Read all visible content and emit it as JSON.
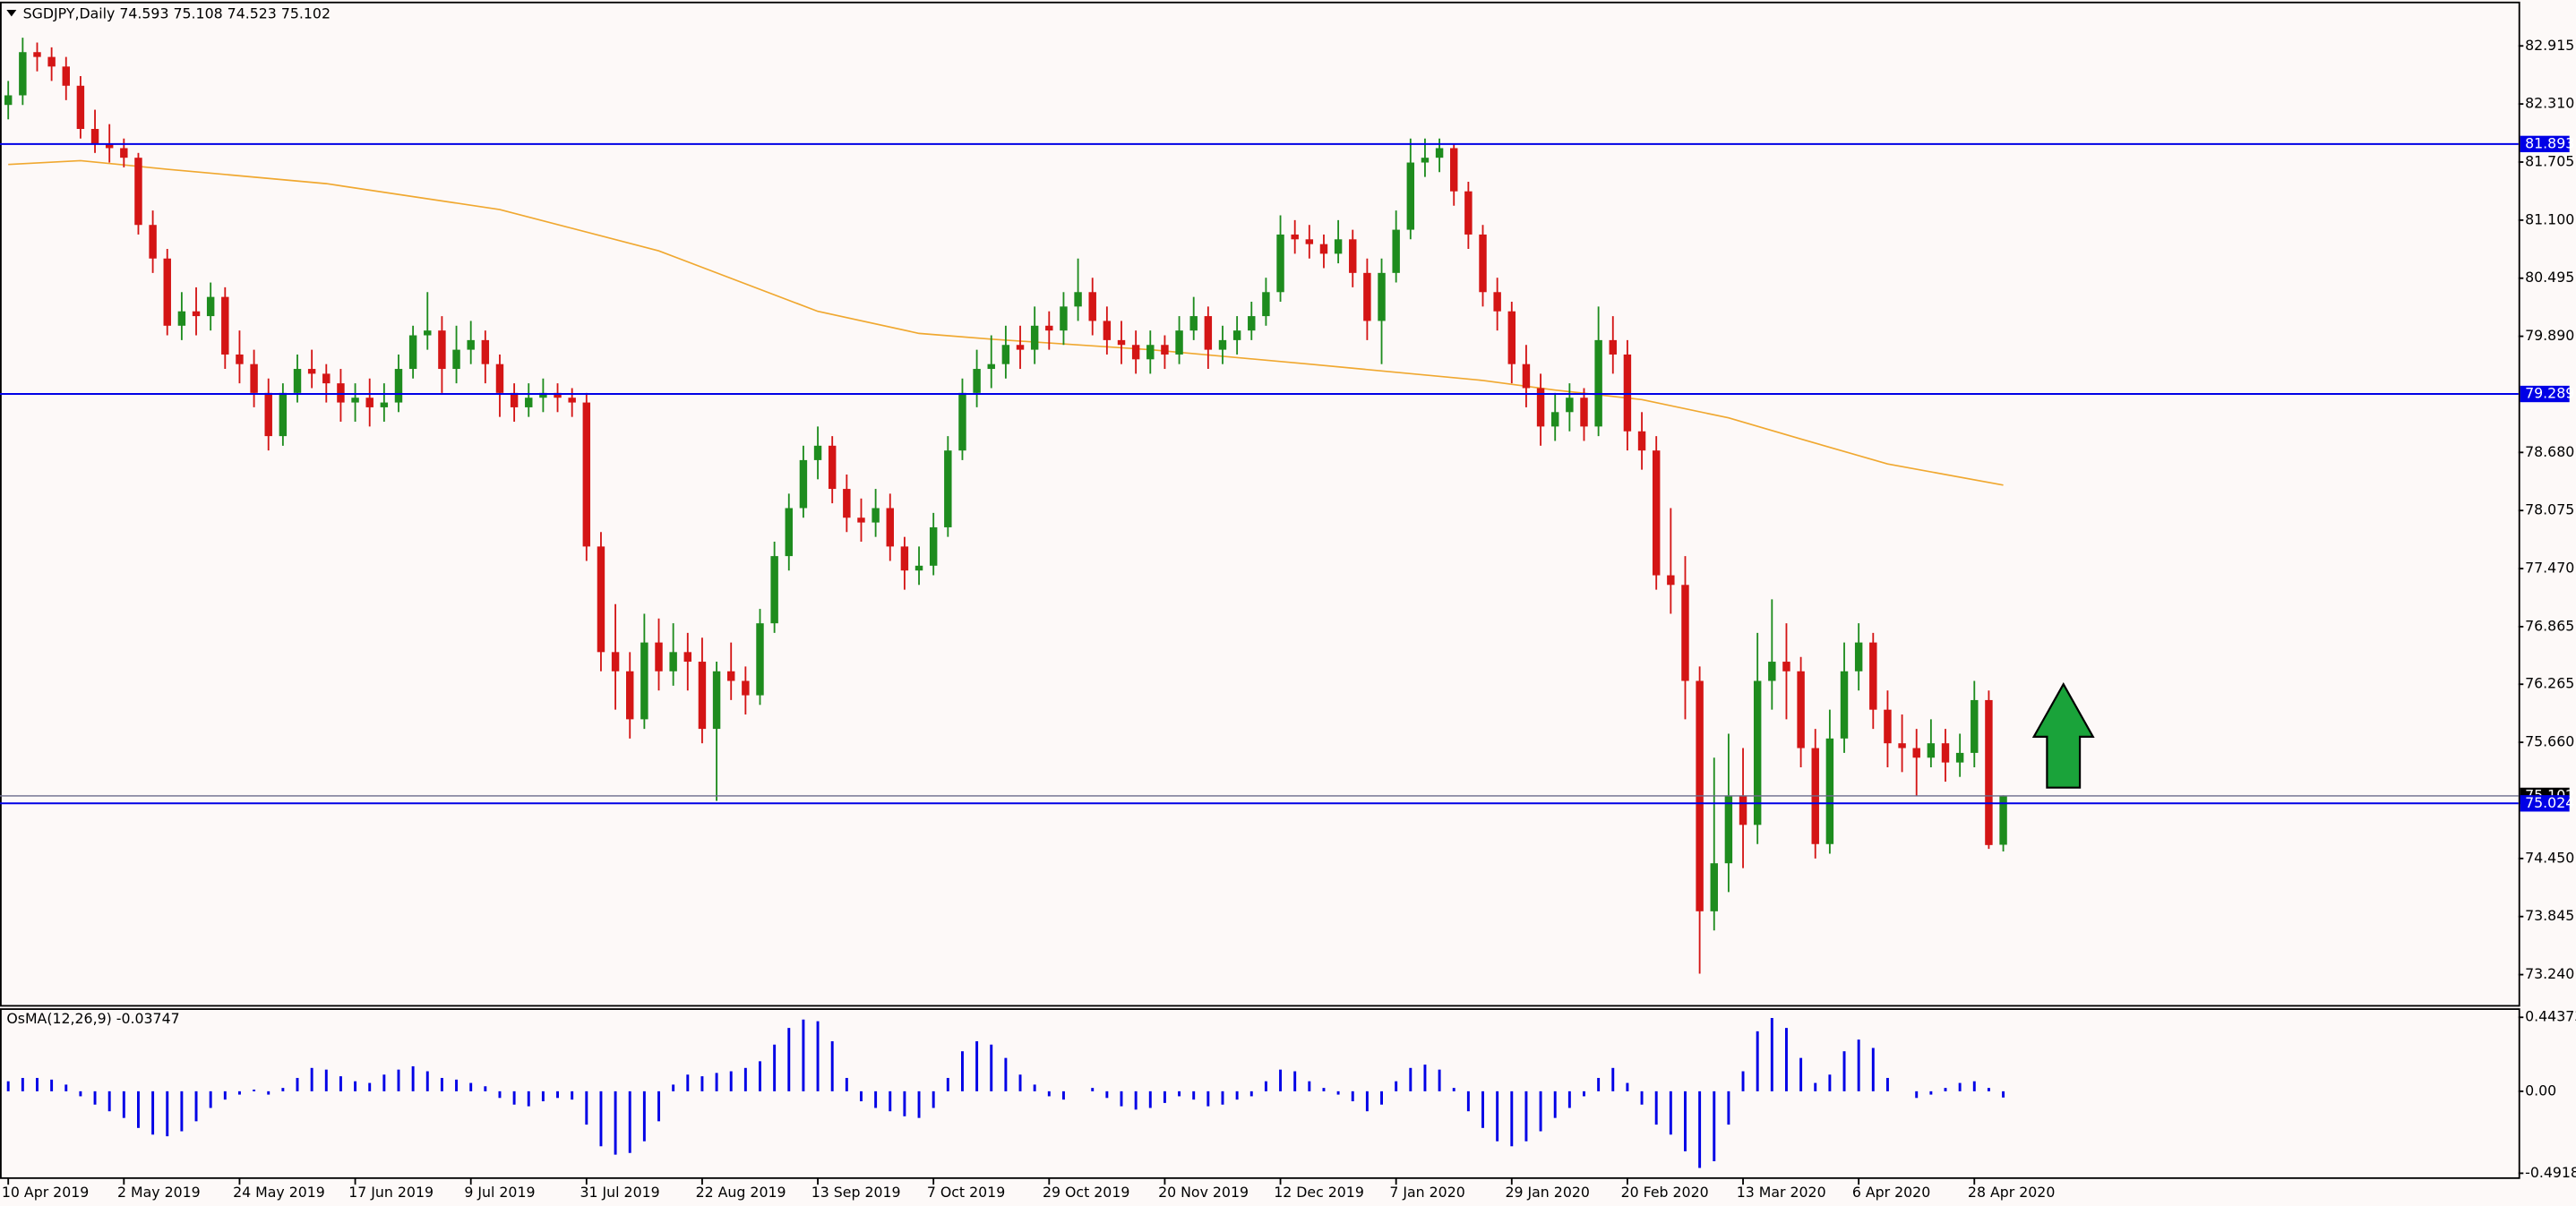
{
  "header": {
    "symbol": "SGDJPY,Daily",
    "ohlc": [
      74.593,
      75.108,
      74.523,
      75.102
    ]
  },
  "chart_data": [
    {
      "type": "candlestick",
      "up_color": "#1e8c1e",
      "down_color": "#d41515",
      "candles": [
        [
          82.3,
          82.55,
          82.15,
          82.4
        ],
        [
          82.4,
          83.0,
          82.3,
          82.85
        ],
        [
          82.85,
          82.95,
          82.65,
          82.8
        ],
        [
          82.8,
          82.9,
          82.55,
          82.7
        ],
        [
          82.7,
          82.8,
          82.35,
          82.5
        ],
        [
          82.5,
          82.6,
          81.95,
          82.05
        ],
        [
          82.05,
          82.25,
          81.8,
          81.9
        ],
        [
          81.9,
          82.1,
          81.7,
          81.85
        ],
        [
          81.85,
          81.95,
          81.65,
          81.75
        ],
        [
          81.75,
          81.8,
          80.95,
          81.05
        ],
        [
          81.05,
          81.2,
          80.55,
          80.7
        ],
        [
          80.7,
          80.8,
          79.9,
          80.0
        ],
        [
          80.0,
          80.35,
          79.85,
          80.15
        ],
        [
          80.15,
          80.4,
          79.9,
          80.1
        ],
        [
          80.1,
          80.45,
          79.95,
          80.3
        ],
        [
          80.3,
          80.4,
          79.55,
          79.7
        ],
        [
          79.7,
          79.95,
          79.4,
          79.6
        ],
        [
          79.6,
          79.75,
          79.15,
          79.3
        ],
        [
          79.3,
          79.45,
          78.7,
          78.85
        ],
        [
          78.85,
          79.4,
          78.75,
          79.3
        ],
        [
          79.3,
          79.7,
          79.2,
          79.55
        ],
        [
          79.55,
          79.75,
          79.35,
          79.5
        ],
        [
          79.5,
          79.6,
          79.2,
          79.4
        ],
        [
          79.4,
          79.55,
          79.0,
          79.2
        ],
        [
          79.2,
          79.4,
          79.0,
          79.25
        ],
        [
          79.25,
          79.45,
          78.95,
          79.15
        ],
        [
          79.15,
          79.4,
          79.0,
          79.2
        ],
        [
          79.2,
          79.7,
          79.1,
          79.55
        ],
        [
          79.55,
          80.0,
          79.45,
          79.9
        ],
        [
          79.9,
          80.35,
          79.75,
          79.95
        ],
        [
          79.95,
          80.1,
          79.3,
          79.55
        ],
        [
          79.55,
          80.0,
          79.4,
          79.75
        ],
        [
          79.75,
          80.05,
          79.6,
          79.85
        ],
        [
          79.85,
          79.95,
          79.4,
          79.6
        ],
        [
          79.6,
          79.7,
          79.05,
          79.3
        ],
        [
          79.3,
          79.4,
          79.0,
          79.15
        ],
        [
          79.15,
          79.4,
          79.05,
          79.25
        ],
        [
          79.25,
          79.45,
          79.1,
          79.3
        ],
        [
          79.3,
          79.4,
          79.1,
          79.25
        ],
        [
          79.25,
          79.35,
          79.05,
          79.2
        ],
        [
          79.2,
          79.3,
          77.55,
          77.7
        ],
        [
          77.7,
          77.85,
          76.4,
          76.6
        ],
        [
          76.6,
          77.1,
          76.0,
          76.4
        ],
        [
          76.4,
          76.6,
          75.7,
          75.9
        ],
        [
          75.9,
          77.0,
          75.8,
          76.7
        ],
        [
          76.7,
          76.95,
          76.2,
          76.4
        ],
        [
          76.4,
          76.9,
          76.25,
          76.6
        ],
        [
          76.6,
          76.8,
          76.2,
          76.5
        ],
        [
          76.5,
          76.75,
          75.65,
          75.8
        ],
        [
          75.8,
          76.5,
          75.05,
          76.4
        ],
        [
          76.4,
          76.7,
          76.1,
          76.3
        ],
        [
          76.3,
          76.45,
          75.95,
          76.15
        ],
        [
          76.15,
          77.05,
          76.05,
          76.9
        ],
        [
          76.9,
          77.75,
          76.8,
          77.6
        ],
        [
          77.6,
          78.25,
          77.45,
          78.1
        ],
        [
          78.1,
          78.75,
          78.0,
          78.6
        ],
        [
          78.6,
          78.95,
          78.4,
          78.75
        ],
        [
          78.75,
          78.85,
          78.15,
          78.3
        ],
        [
          78.3,
          78.45,
          77.85,
          78.0
        ],
        [
          78.0,
          78.2,
          77.75,
          77.95
        ],
        [
          77.95,
          78.3,
          77.8,
          78.1
        ],
        [
          78.1,
          78.25,
          77.55,
          77.7
        ],
        [
          77.7,
          77.8,
          77.25,
          77.45
        ],
        [
          77.45,
          77.7,
          77.3,
          77.5
        ],
        [
          77.5,
          78.05,
          77.4,
          77.9
        ],
        [
          77.9,
          78.85,
          77.8,
          78.7
        ],
        [
          78.7,
          79.45,
          78.6,
          79.3
        ],
        [
          79.3,
          79.75,
          79.15,
          79.55
        ],
        [
          79.55,
          79.9,
          79.35,
          79.6
        ],
        [
          79.6,
          80.0,
          79.45,
          79.8
        ],
        [
          79.8,
          80.0,
          79.55,
          79.75
        ],
        [
          79.75,
          80.2,
          79.6,
          80.0
        ],
        [
          80.0,
          80.15,
          79.75,
          79.95
        ],
        [
          79.95,
          80.35,
          79.8,
          80.2
        ],
        [
          80.2,
          80.7,
          80.05,
          80.35
        ],
        [
          80.35,
          80.5,
          79.9,
          80.05
        ],
        [
          80.05,
          80.2,
          79.7,
          79.85
        ],
        [
          79.85,
          80.05,
          79.6,
          79.8
        ],
        [
          79.8,
          79.95,
          79.5,
          79.65
        ],
        [
          79.65,
          79.95,
          79.5,
          79.8
        ],
        [
          79.8,
          79.9,
          79.55,
          79.7
        ],
        [
          79.7,
          80.1,
          79.6,
          79.95
        ],
        [
          79.95,
          80.3,
          79.85,
          80.1
        ],
        [
          80.1,
          80.2,
          79.55,
          79.75
        ],
        [
          79.75,
          80.0,
          79.6,
          79.85
        ],
        [
          79.85,
          80.1,
          79.7,
          79.95
        ],
        [
          79.95,
          80.25,
          79.85,
          80.1
        ],
        [
          80.1,
          80.5,
          80.0,
          80.35
        ],
        [
          80.35,
          81.15,
          80.25,
          80.95
        ],
        [
          80.95,
          81.1,
          80.75,
          80.9
        ],
        [
          80.9,
          81.05,
          80.7,
          80.85
        ],
        [
          80.85,
          80.95,
          80.6,
          80.75
        ],
        [
          80.75,
          81.1,
          80.65,
          80.9
        ],
        [
          80.9,
          81.0,
          80.4,
          80.55
        ],
        [
          80.55,
          80.7,
          79.85,
          80.05
        ],
        [
          80.05,
          80.7,
          79.6,
          80.55
        ],
        [
          80.55,
          81.2,
          80.45,
          81.0
        ],
        [
          81.0,
          81.95,
          80.9,
          81.7
        ],
        [
          81.7,
          81.95,
          81.55,
          81.75
        ],
        [
          81.75,
          81.95,
          81.6,
          81.85
        ],
        [
          81.85,
          81.9,
          81.25,
          81.4
        ],
        [
          81.4,
          81.5,
          80.8,
          80.95
        ],
        [
          80.95,
          81.05,
          80.2,
          80.35
        ],
        [
          80.35,
          80.5,
          79.95,
          80.15
        ],
        [
          80.15,
          80.25,
          79.4,
          79.6
        ],
        [
          79.6,
          79.8,
          79.15,
          79.35
        ],
        [
          79.35,
          79.5,
          78.75,
          78.95
        ],
        [
          78.95,
          79.3,
          78.8,
          79.1
        ],
        [
          79.1,
          79.4,
          78.9,
          79.25
        ],
        [
          79.25,
          79.35,
          78.8,
          78.95
        ],
        [
          78.95,
          80.2,
          78.85,
          79.85
        ],
        [
          79.85,
          80.1,
          79.5,
          79.7
        ],
        [
          79.7,
          79.85,
          78.7,
          78.9
        ],
        [
          78.9,
          79.1,
          78.5,
          78.7
        ],
        [
          78.7,
          78.85,
          77.25,
          77.4
        ],
        [
          77.4,
          78.1,
          77.0,
          77.3
        ],
        [
          77.3,
          77.6,
          75.9,
          76.3
        ],
        [
          76.3,
          76.45,
          73.25,
          73.9
        ],
        [
          73.9,
          75.5,
          73.7,
          74.4
        ],
        [
          74.4,
          75.75,
          74.1,
          75.1
        ],
        [
          75.1,
          75.6,
          74.35,
          74.8
        ],
        [
          74.8,
          76.8,
          74.6,
          76.3
        ],
        [
          76.3,
          77.15,
          76.0,
          76.5
        ],
        [
          76.5,
          76.9,
          75.9,
          76.4
        ],
        [
          76.4,
          76.55,
          75.4,
          75.6
        ],
        [
          75.6,
          75.8,
          74.45,
          74.6
        ],
        [
          74.6,
          76.0,
          74.5,
          75.7
        ],
        [
          75.7,
          76.7,
          75.55,
          76.4
        ],
        [
          76.4,
          76.9,
          76.2,
          76.7
        ],
        [
          76.7,
          76.8,
          75.8,
          76.0
        ],
        [
          76.0,
          76.2,
          75.4,
          75.65
        ],
        [
          75.65,
          75.95,
          75.35,
          75.6
        ],
        [
          75.6,
          75.8,
          75.1,
          75.5
        ],
        [
          75.5,
          75.9,
          75.4,
          75.65
        ],
        [
          75.65,
          75.8,
          75.25,
          75.45
        ],
        [
          75.45,
          75.75,
          75.3,
          75.55
        ],
        [
          75.55,
          76.3,
          75.4,
          76.1
        ],
        [
          76.1,
          76.2,
          74.55,
          74.59
        ],
        [
          74.593,
          75.108,
          74.523,
          75.102
        ]
      ],
      "ma": {
        "color": "#f0a830",
        "x": [
          0,
          5,
          11,
          22,
          34,
          45,
          56,
          63,
          68,
          79,
          90,
          102,
          107,
          113,
          119,
          124,
          130,
          138
        ],
        "values": [
          81.68,
          81.72,
          81.63,
          81.48,
          81.21,
          80.78,
          80.15,
          79.92,
          79.86,
          79.75,
          79.6,
          79.43,
          79.33,
          79.23,
          79.04,
          78.82,
          78.56,
          78.34
        ]
      },
      "levels": [
        81.893,
        79.289,
        75.024
      ],
      "level_color": "#0000e6",
      "current_price": 75.102,
      "xlim": [
        -0.57,
        173.64
      ],
      "ylim": [
        72.915,
        83.359
      ],
      "yticks": [
        82.915,
        {
          "value": 82.31,
          "label": "82.310"
        },
        81.705,
        {
          "value": 81.1,
          "label": "81.100"
        },
        80.495,
        {
          "value": 79.89,
          "label": "79.890"
        },
        {
          "value": 78.68,
          "label": "78.680"
        },
        78.075,
        {
          "value": 77.47,
          "label": "77.470"
        },
        76.865,
        76.265,
        {
          "value": 75.66,
          "label": "75.660"
        },
        {
          "value": 74.45,
          "label": "74.450"
        },
        73.845,
        {
          "value": 73.24,
          "label": "73.240"
        }
      ],
      "xticks": [
        {
          "value": 0,
          "label": "10 Apr 2019"
        },
        {
          "value": 8,
          "label": "2 May 2019"
        },
        {
          "value": 16,
          "label": "24 May 2019"
        },
        {
          "value": 24,
          "label": "17 Jun 2019"
        },
        {
          "value": 32,
          "label": "9 Jul 2019"
        },
        {
          "value": 40,
          "label": "31 Jul 2019"
        },
        {
          "value": 48,
          "label": "22 Aug 2019"
        },
        {
          "value": 56,
          "label": "13 Sep 2019"
        },
        {
          "value": 64,
          "label": "7 Oct 2019"
        },
        {
          "value": 72,
          "label": "29 Oct 2019"
        },
        {
          "value": 80,
          "label": "20 Nov 2019"
        },
        {
          "value": 88,
          "label": "12 Dec 2019"
        },
        {
          "value": 96,
          "label": "7 Jan 2020"
        },
        {
          "value": 104,
          "label": "29 Jan 2020"
        },
        {
          "value": 112,
          "label": "20 Feb 2020"
        },
        {
          "value": 120,
          "label": "13 Mar 2020"
        },
        {
          "value": 128,
          "label": "6 Apr 2020"
        },
        {
          "value": 136,
          "label": "28 Apr 2020"
        }
      ]
    },
    {
      "type": "bar",
      "title": "OsMA(12,26,9)",
      "title_value": -0.03747,
      "color": "#0000e6",
      "values": [
        0.06,
        0.08,
        0.08,
        0.07,
        0.04,
        -0.03,
        -0.08,
        -0.12,
        -0.16,
        -0.22,
        -0.26,
        -0.27,
        -0.24,
        -0.18,
        -0.1,
        -0.05,
        -0.02,
        0.01,
        -0.02,
        0.02,
        0.08,
        0.14,
        0.13,
        0.09,
        0.06,
        0.05,
        0.1,
        0.13,
        0.15,
        0.12,
        0.08,
        0.07,
        0.05,
        0.03,
        -0.04,
        -0.08,
        -0.09,
        -0.06,
        -0.04,
        -0.05,
        -0.2,
        -0.33,
        -0.38,
        -0.37,
        -0.3,
        -0.18,
        0.04,
        0.1,
        0.09,
        0.11,
        0.12,
        0.14,
        0.18,
        0.28,
        0.38,
        0.43,
        0.42,
        0.3,
        0.08,
        -0.06,
        -0.1,
        -0.12,
        -0.15,
        -0.16,
        -0.1,
        0.08,
        0.24,
        0.3,
        0.28,
        0.2,
        0.1,
        0.04,
        -0.03,
        -0.05,
        0.0,
        0.02,
        -0.04,
        -0.09,
        -0.11,
        -0.1,
        -0.07,
        -0.03,
        -0.05,
        -0.09,
        -0.08,
        -0.05,
        -0.03,
        0.06,
        0.13,
        0.12,
        0.06,
        0.02,
        -0.02,
        -0.06,
        -0.12,
        -0.08,
        0.06,
        0.14,
        0.16,
        0.13,
        0.02,
        -0.12,
        -0.22,
        -0.3,
        -0.33,
        -0.3,
        -0.24,
        -0.16,
        -0.1,
        -0.03,
        0.08,
        0.14,
        0.05,
        -0.08,
        -0.2,
        -0.26,
        -0.36,
        -0.46,
        -0.42,
        -0.2,
        0.12,
        0.36,
        0.44,
        0.38,
        0.2,
        0.05,
        0.1,
        0.24,
        0.31,
        0.26,
        0.08,
        0.0,
        -0.04,
        -0.02,
        0.02,
        0.05,
        0.06,
        0.02,
        -0.03747
      ],
      "ylim": [
        -0.521,
        0.493
      ],
      "yticks": [
        0.44373,
        {
          "value": 0,
          "label": "0.00"
        },
        -0.49184
      ]
    }
  ]
}
